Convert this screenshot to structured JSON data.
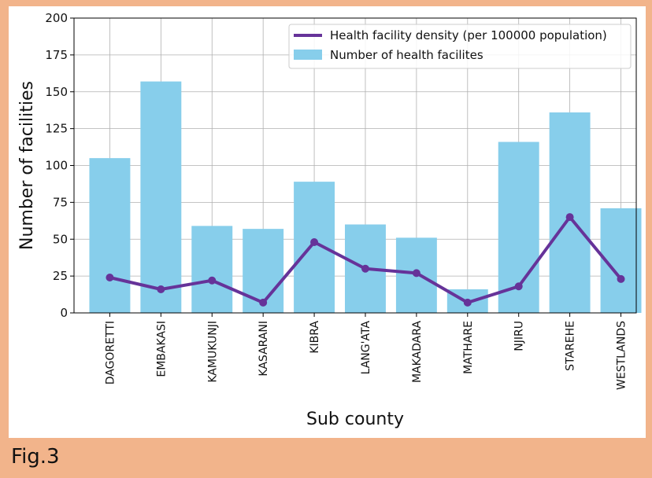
{
  "caption": "Fig.3",
  "colors": {
    "page_background": "#f2b48b",
    "bar": "#87ceeb",
    "line": "#663399",
    "grid": "#b0b0b0"
  },
  "chart_data": {
    "type": "bar",
    "categories": [
      "DAGORETTI",
      "EMBAKASI",
      "KAMUKUNJI",
      "KASARANI",
      "KIBRA",
      "LANG'ATA",
      "MAKADARA",
      "MATHARE",
      "NJIRU",
      "STAREHE",
      "WESTLANDS"
    ],
    "series": [
      {
        "name": "Number of health facilites",
        "type": "bar",
        "color": "#87ceeb",
        "values": [
          105,
          157,
          59,
          57,
          89,
          60,
          51,
          16,
          116,
          136,
          71
        ]
      },
      {
        "name": "Health facility density (per 100000 population)",
        "type": "line",
        "color": "#663399",
        "values": [
          24,
          16,
          22,
          7,
          48,
          30,
          27,
          7,
          18,
          65,
          23
        ]
      }
    ],
    "xlabel": "Sub county",
    "ylabel": "Number of facilities",
    "ylim": [
      0,
      200
    ],
    "yticks": [
      0,
      25,
      50,
      75,
      100,
      125,
      150,
      175,
      200
    ],
    "grid": true,
    "legend_position": "top-right"
  }
}
